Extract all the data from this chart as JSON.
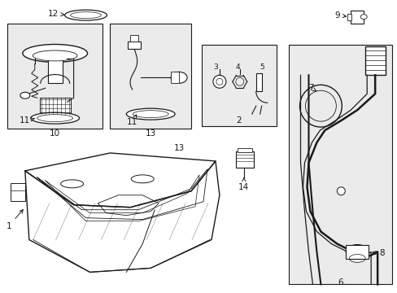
{
  "background_color": "#ffffff",
  "line_color": "#1a1a1a",
  "box_fill": "#ebebeb",
  "label_fontsize": 7.5,
  "figsize": [
    4.89,
    3.6
  ],
  "dpi": 100
}
